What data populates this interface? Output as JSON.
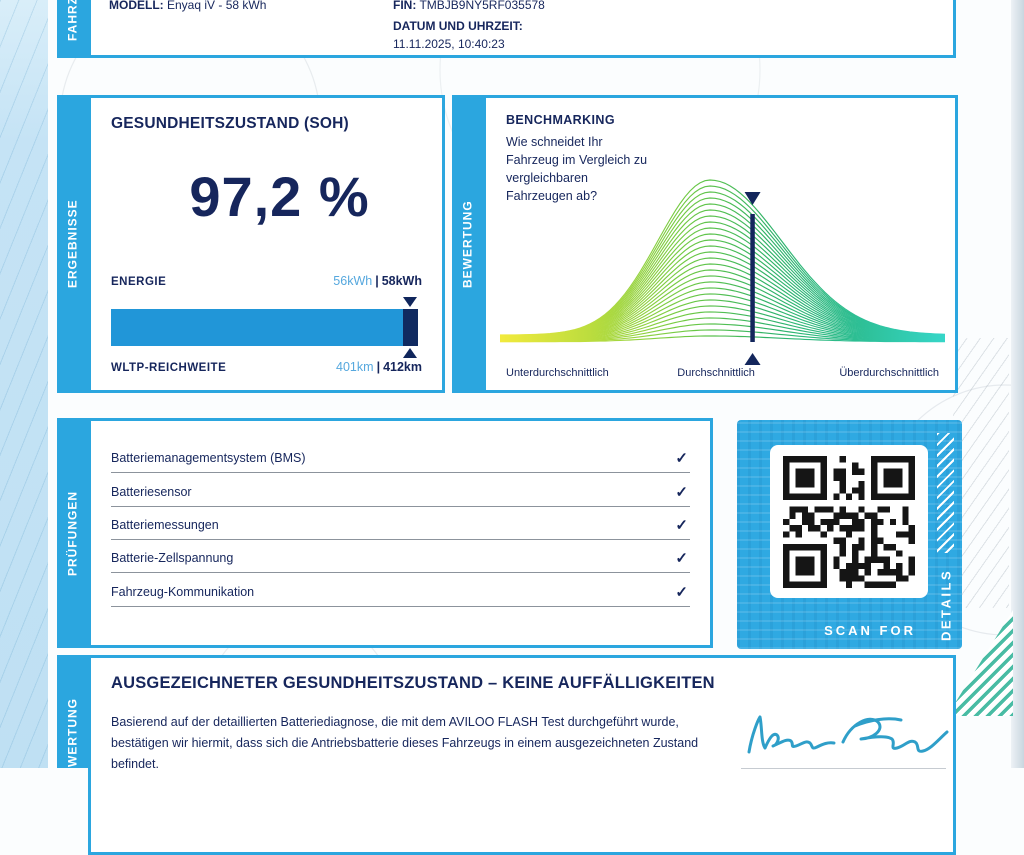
{
  "colors": {
    "accent_blue": "#2BA6DF",
    "navy": "#16265C",
    "value_blue": "#56A8DE",
    "bar_fill": "#2196D8",
    "bar_cap": "#102A60",
    "teal_hatch": "#49BCA4",
    "qr_background": "#2FA9E2",
    "signature_blue": "#2F9FC9"
  },
  "sections": {
    "fahrzeug": {
      "tab": "FAHRZEUG",
      "modell_label": "MODELL:",
      "modell_value": "Enyaq iV - 58 kWh",
      "fin_label": "FIN:",
      "fin_value": "TMBJB9NY5RF035578",
      "datum_label": "DATUM UND UHRZEIT:",
      "datum_value": "11.11.2025, 10:40:23"
    },
    "ergebnisse": {
      "tab": "ERGEBNISSE",
      "title": "GESUNDHEITSZUSTAND (SOH)",
      "soh_value": "97,2 %",
      "energie_label": "ENERGIE",
      "energie_current": "56kWh",
      "sep": "|",
      "energie_nominal": "58kWh",
      "bar_percent": 97,
      "wltp_label": "WLTP-REICHWEITE",
      "wltp_current": "401km",
      "wltp_nominal": "412km"
    },
    "bewertung": {
      "tab": "BEWERTUNG",
      "title": "BENCHMARKING",
      "question_lines": [
        "Wie schneidet Ihr",
        "Fahrzeug im Vergleich zu",
        "vergleichbaren",
        "Fahrzeugen ab?"
      ]
    },
    "pruefungen": {
      "tab": "PRÜFUNGEN",
      "check_glyph": "✓",
      "items": [
        {
          "label": "Batteriemanagementsystem (BMS)",
          "checked": true
        },
        {
          "label": "Batteriesensor",
          "checked": true
        },
        {
          "label": "Batteriemessungen",
          "checked": true
        },
        {
          "label": "Batterie-Zellspannung",
          "checked": true
        },
        {
          "label": "Fahrzeug-Kommunikation",
          "checked": true
        }
      ]
    },
    "qr": {
      "scan_for": "SCAN FOR",
      "details": "DETAILS"
    },
    "gesamtbewertung": {
      "tab": "GESAMTBEWERTUNG",
      "heading": "AUSGEZEICHNETER GESUNDHEITSZUSTAND – KEINE AUFFÄLLIGKEITEN",
      "body": "Basierend auf der detaillierten Batteriediagnose, die mit dem AVILOO FLASH Test durchgeführt wurde, bestätigen wir hiermit, dass sich die Antriebsbatterie dieses Fahrzeugs in einem ausgezeichneten Zustand befindet.",
      "signature_name": "Marcus Berger"
    }
  },
  "chart_data": {
    "type": "area",
    "title": "BENCHMARKING",
    "x_labels": [
      "Unterdurchschnittlich",
      "Durchschnittlich",
      "Überdurchschnittlich"
    ],
    "curve": {
      "shape": "normal",
      "peak_x_frac": 0.47,
      "sigma_left_frac": 0.117,
      "sigma_right_frac": 0.16,
      "layers": 27
    },
    "marker_x_frac": 0.565,
    "gradient_stops": [
      "#F2EA3D",
      "#BCDD3E",
      "#6FC943",
      "#2FB266",
      "#2DBE93",
      "#36D6C8"
    ],
    "marker_color": "#13265C",
    "grid": false,
    "legend": false
  }
}
